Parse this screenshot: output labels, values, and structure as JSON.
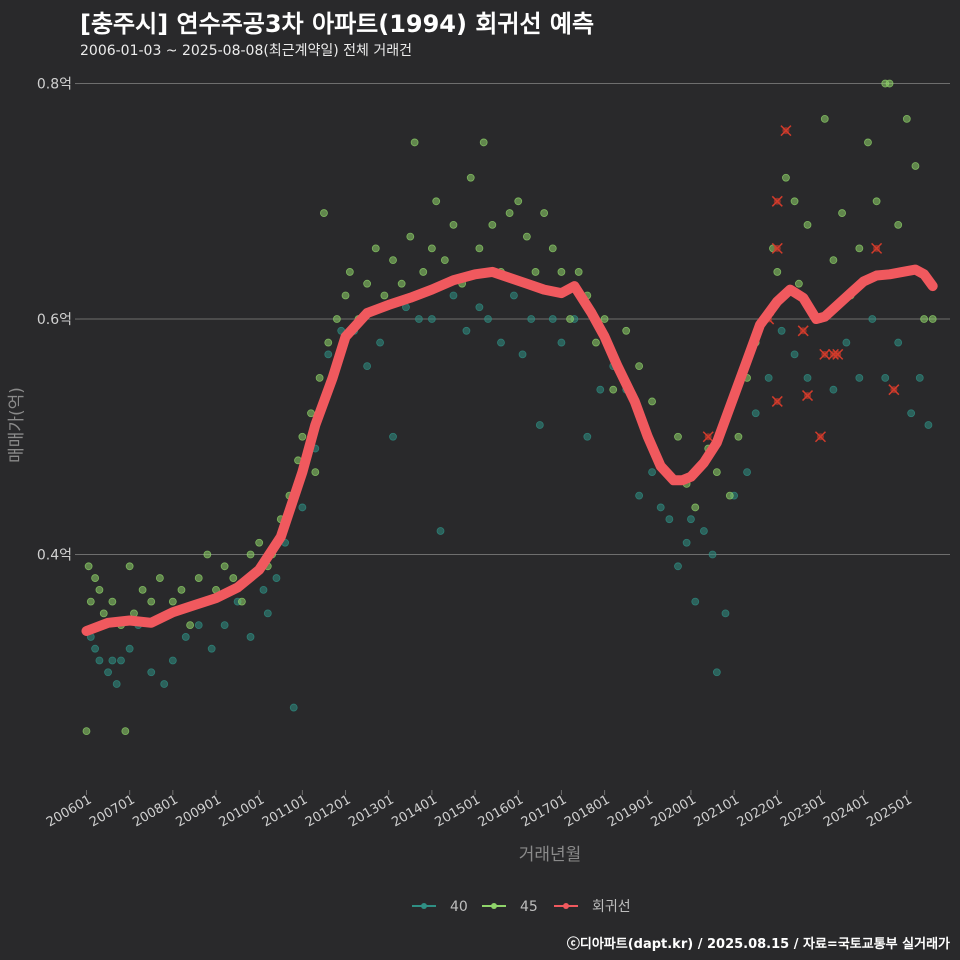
{
  "title": "[충주시] 연수주공3차 아파트(1994) 회귀선 예측",
  "subtitle": "2006-01-03 ~ 2025-08-08(최근계약일) 전체 거래건",
  "footer": "ⓒ디아파트(dapt.kr) / 2025.08.15 / 자료=국토교통부 실거래가",
  "colors": {
    "background": "#29292b",
    "grid": "#6e6e6e",
    "s40": "#2f8f84",
    "s45": "#8fd46a",
    "regression": "#f0595e",
    "outlier": "#d23b2b"
  },
  "chart_data": {
    "type": "scatter",
    "title": "[충주시] 연수주공3차 아파트(1994) 회귀선 예측",
    "xlabel": "거래년월",
    "ylabel": "매매가(억)",
    "xlim": [
      2005.85,
      2026.0
    ],
    "ylim": [
      0.2,
      0.82
    ],
    "y_ticks": [
      {
        "value": 0.4,
        "label": "0.4억"
      },
      {
        "value": 0.6,
        "label": "0.6억"
      },
      {
        "value": 0.8,
        "label": "0.8억"
      }
    ],
    "x_ticks": [
      {
        "value": 2006.0,
        "label": "200601"
      },
      {
        "value": 2007.0,
        "label": "200701"
      },
      {
        "value": 2008.0,
        "label": "200801"
      },
      {
        "value": 2009.0,
        "label": "200901"
      },
      {
        "value": 2010.0,
        "label": "201001"
      },
      {
        "value": 2011.0,
        "label": "201101"
      },
      {
        "value": 2012.0,
        "label": "201201"
      },
      {
        "value": 2013.0,
        "label": "201301"
      },
      {
        "value": 2014.0,
        "label": "201401"
      },
      {
        "value": 2015.0,
        "label": "201501"
      },
      {
        "value": 2016.0,
        "label": "201601"
      },
      {
        "value": 2017.0,
        "label": "201701"
      },
      {
        "value": 2018.0,
        "label": "201801"
      },
      {
        "value": 2019.0,
        "label": "201901"
      },
      {
        "value": 2020.0,
        "label": "202001"
      },
      {
        "value": 2021.0,
        "label": "202101"
      },
      {
        "value": 2022.0,
        "label": "202201"
      },
      {
        "value": 2023.0,
        "label": "202301"
      },
      {
        "value": 2024.0,
        "label": "202401"
      },
      {
        "value": 2025.0,
        "label": "202501"
      }
    ],
    "legend": [
      {
        "name": "40",
        "color": "#2f8f84"
      },
      {
        "name": "45",
        "color": "#8fd46a"
      },
      {
        "name": "회귀선",
        "color": "#f0595e"
      }
    ],
    "regression": {
      "name": "회귀선",
      "x": [
        2006.0,
        2006.5,
        2007.0,
        2007.5,
        2008.0,
        2008.5,
        2009.0,
        2009.5,
        2010.0,
        2010.5,
        2011.0,
        2011.3,
        2011.7,
        2012.0,
        2012.5,
        2013.0,
        2013.5,
        2014.0,
        2014.5,
        2015.0,
        2015.4,
        2015.8,
        2016.2,
        2016.6,
        2017.0,
        2017.3,
        2017.7,
        2018.0,
        2018.3,
        2018.7,
        2019.0,
        2019.3,
        2019.6,
        2019.8,
        2020.0,
        2020.3,
        2020.6,
        2021.0,
        2021.3,
        2021.6,
        2022.0,
        2022.3,
        2022.6,
        2022.9,
        2023.1,
        2023.4,
        2023.7,
        2024.0,
        2024.3,
        2024.6,
        2024.9,
        2025.2,
        2025.4,
        2025.6
      ],
      "y": [
        0.335,
        0.342,
        0.344,
        0.342,
        0.351,
        0.357,
        0.363,
        0.372,
        0.387,
        0.415,
        0.47,
        0.51,
        0.55,
        0.585,
        0.605,
        0.612,
        0.618,
        0.625,
        0.633,
        0.638,
        0.64,
        0.635,
        0.63,
        0.625,
        0.622,
        0.628,
        0.605,
        0.585,
        0.56,
        0.53,
        0.5,
        0.475,
        0.463,
        0.463,
        0.466,
        0.478,
        0.495,
        0.535,
        0.565,
        0.595,
        0.615,
        0.625,
        0.618,
        0.6,
        0.602,
        0.612,
        0.622,
        0.632,
        0.637,
        0.638,
        0.64,
        0.642,
        0.638,
        0.628
      ]
    },
    "series": [
      {
        "name": "40",
        "points": [
          [
            2006.1,
            0.33
          ],
          [
            2006.2,
            0.32
          ],
          [
            2006.3,
            0.31
          ],
          [
            2006.5,
            0.3
          ],
          [
            2006.6,
            0.31
          ],
          [
            2006.7,
            0.29
          ],
          [
            2006.8,
            0.31
          ],
          [
            2007.0,
            0.32
          ],
          [
            2007.2,
            0.34
          ],
          [
            2007.5,
            0.3
          ],
          [
            2007.8,
            0.29
          ],
          [
            2008.0,
            0.31
          ],
          [
            2008.3,
            0.33
          ],
          [
            2008.6,
            0.34
          ],
          [
            2008.9,
            0.32
          ],
          [
            2009.2,
            0.34
          ],
          [
            2009.5,
            0.36
          ],
          [
            2009.8,
            0.33
          ],
          [
            2010.1,
            0.37
          ],
          [
            2010.2,
            0.35
          ],
          [
            2010.4,
            0.38
          ],
          [
            2010.6,
            0.41
          ],
          [
            2010.8,
            0.27
          ],
          [
            2011.0,
            0.44
          ],
          [
            2011.3,
            0.49
          ],
          [
            2011.6,
            0.57
          ],
          [
            2011.9,
            0.59
          ],
          [
            2012.2,
            0.59
          ],
          [
            2012.5,
            0.56
          ],
          [
            2012.8,
            0.58
          ],
          [
            2013.1,
            0.5
          ],
          [
            2013.4,
            0.61
          ],
          [
            2013.7,
            0.6
          ],
          [
            2014.0,
            0.6
          ],
          [
            2014.2,
            0.42
          ],
          [
            2014.5,
            0.62
          ],
          [
            2014.8,
            0.59
          ],
          [
            2015.1,
            0.61
          ],
          [
            2015.3,
            0.6
          ],
          [
            2015.6,
            0.58
          ],
          [
            2015.9,
            0.62
          ],
          [
            2016.1,
            0.57
          ],
          [
            2016.3,
            0.6
          ],
          [
            2016.5,
            0.51
          ],
          [
            2016.8,
            0.6
          ],
          [
            2017.0,
            0.58
          ],
          [
            2017.3,
            0.6
          ],
          [
            2017.6,
            0.5
          ],
          [
            2017.9,
            0.54
          ],
          [
            2018.2,
            0.56
          ],
          [
            2018.5,
            0.54
          ],
          [
            2018.8,
            0.45
          ],
          [
            2019.1,
            0.47
          ],
          [
            2019.3,
            0.44
          ],
          [
            2019.5,
            0.43
          ],
          [
            2019.7,
            0.39
          ],
          [
            2019.9,
            0.41
          ],
          [
            2020.0,
            0.43
          ],
          [
            2020.1,
            0.36
          ],
          [
            2020.3,
            0.42
          ],
          [
            2020.5,
            0.4
          ],
          [
            2020.6,
            0.3
          ],
          [
            2020.8,
            0.35
          ],
          [
            2021.0,
            0.45
          ],
          [
            2021.3,
            0.47
          ],
          [
            2021.5,
            0.52
          ],
          [
            2021.8,
            0.55
          ],
          [
            2022.1,
            0.59
          ],
          [
            2022.4,
            0.57
          ],
          [
            2022.7,
            0.55
          ],
          [
            2023.0,
            0.6
          ],
          [
            2023.3,
            0.54
          ],
          [
            2023.6,
            0.58
          ],
          [
            2023.9,
            0.55
          ],
          [
            2024.2,
            0.6
          ],
          [
            2024.5,
            0.55
          ],
          [
            2024.8,
            0.58
          ],
          [
            2025.1,
            0.52
          ],
          [
            2025.3,
            0.55
          ],
          [
            2025.5,
            0.51
          ]
        ]
      },
      {
        "name": "45",
        "points": [
          [
            2006.0,
            0.25
          ],
          [
            2006.05,
            0.39
          ],
          [
            2006.1,
            0.36
          ],
          [
            2006.2,
            0.38
          ],
          [
            2006.3,
            0.37
          ],
          [
            2006.4,
            0.35
          ],
          [
            2006.6,
            0.36
          ],
          [
            2006.8,
            0.34
          ],
          [
            2006.9,
            0.25
          ],
          [
            2007.0,
            0.39
          ],
          [
            2007.1,
            0.35
          ],
          [
            2007.3,
            0.37
          ],
          [
            2007.5,
            0.36
          ],
          [
            2007.7,
            0.38
          ],
          [
            2008.0,
            0.36
          ],
          [
            2008.2,
            0.37
          ],
          [
            2008.4,
            0.34
          ],
          [
            2008.6,
            0.38
          ],
          [
            2008.8,
            0.4
          ],
          [
            2009.0,
            0.37
          ],
          [
            2009.2,
            0.39
          ],
          [
            2009.4,
            0.38
          ],
          [
            2009.6,
            0.36
          ],
          [
            2009.8,
            0.4
          ],
          [
            2010.0,
            0.41
          ],
          [
            2010.2,
            0.39
          ],
          [
            2010.3,
            0.4
          ],
          [
            2010.5,
            0.43
          ],
          [
            2010.7,
            0.45
          ],
          [
            2010.9,
            0.48
          ],
          [
            2011.0,
            0.5
          ],
          [
            2011.2,
            0.52
          ],
          [
            2011.3,
            0.47
          ],
          [
            2011.4,
            0.55
          ],
          [
            2011.5,
            0.69
          ],
          [
            2011.6,
            0.58
          ],
          [
            2011.8,
            0.6
          ],
          [
            2012.0,
            0.62
          ],
          [
            2012.1,
            0.64
          ],
          [
            2012.3,
            0.6
          ],
          [
            2012.5,
            0.63
          ],
          [
            2012.7,
            0.66
          ],
          [
            2012.9,
            0.62
          ],
          [
            2013.1,
            0.65
          ],
          [
            2013.3,
            0.63
          ],
          [
            2013.5,
            0.67
          ],
          [
            2013.6,
            0.75
          ],
          [
            2013.8,
            0.64
          ],
          [
            2014.0,
            0.66
          ],
          [
            2014.1,
            0.7
          ],
          [
            2014.3,
            0.65
          ],
          [
            2014.5,
            0.68
          ],
          [
            2014.7,
            0.63
          ],
          [
            2014.9,
            0.72
          ],
          [
            2015.1,
            0.66
          ],
          [
            2015.2,
            0.75
          ],
          [
            2015.4,
            0.68
          ],
          [
            2015.6,
            0.64
          ],
          [
            2015.8,
            0.69
          ],
          [
            2016.0,
            0.7
          ],
          [
            2016.2,
            0.67
          ],
          [
            2016.4,
            0.64
          ],
          [
            2016.6,
            0.69
          ],
          [
            2016.8,
            0.66
          ],
          [
            2017.0,
            0.64
          ],
          [
            2017.2,
            0.6
          ],
          [
            2017.4,
            0.64
          ],
          [
            2017.6,
            0.62
          ],
          [
            2017.8,
            0.58
          ],
          [
            2018.0,
            0.6
          ],
          [
            2018.2,
            0.54
          ],
          [
            2018.5,
            0.59
          ],
          [
            2018.8,
            0.56
          ],
          [
            2019.1,
            0.53
          ],
          [
            2019.4,
            0.47
          ],
          [
            2019.7,
            0.5
          ],
          [
            2019.9,
            0.46
          ],
          [
            2020.1,
            0.44
          ],
          [
            2020.4,
            0.49
          ],
          [
            2020.6,
            0.47
          ],
          [
            2020.9,
            0.45
          ],
          [
            2021.1,
            0.5
          ],
          [
            2021.3,
            0.55
          ],
          [
            2021.5,
            0.58
          ],
          [
            2021.7,
            0.6
          ],
          [
            2021.9,
            0.66
          ],
          [
            2022.0,
            0.64
          ],
          [
            2022.2,
            0.72
          ],
          [
            2022.4,
            0.7
          ],
          [
            2022.5,
            0.63
          ],
          [
            2022.7,
            0.68
          ],
          [
            2022.9,
            0.6
          ],
          [
            2023.1,
            0.77
          ],
          [
            2023.3,
            0.65
          ],
          [
            2023.5,
            0.69
          ],
          [
            2023.7,
            0.62
          ],
          [
            2023.9,
            0.66
          ],
          [
            2024.1,
            0.75
          ],
          [
            2024.3,
            0.7
          ],
          [
            2024.5,
            0.8
          ],
          [
            2024.6,
            0.8
          ],
          [
            2024.8,
            0.68
          ],
          [
            2025.0,
            0.77
          ],
          [
            2025.2,
            0.73
          ],
          [
            2025.4,
            0.6
          ],
          [
            2025.6,
            0.6
          ]
        ]
      }
    ],
    "outliers": [
      [
        2020.4,
        0.5
      ],
      [
        2021.8,
        0.6
      ],
      [
        2022.0,
        0.7
      ],
      [
        2022.0,
        0.66
      ],
      [
        2022.0,
        0.53
      ],
      [
        2022.2,
        0.76
      ],
      [
        2022.6,
        0.59
      ],
      [
        2022.7,
        0.535
      ],
      [
        2023.0,
        0.5
      ],
      [
        2023.1,
        0.57
      ],
      [
        2023.3,
        0.57
      ],
      [
        2023.4,
        0.57
      ],
      [
        2024.3,
        0.66
      ],
      [
        2024.7,
        0.54
      ]
    ]
  }
}
